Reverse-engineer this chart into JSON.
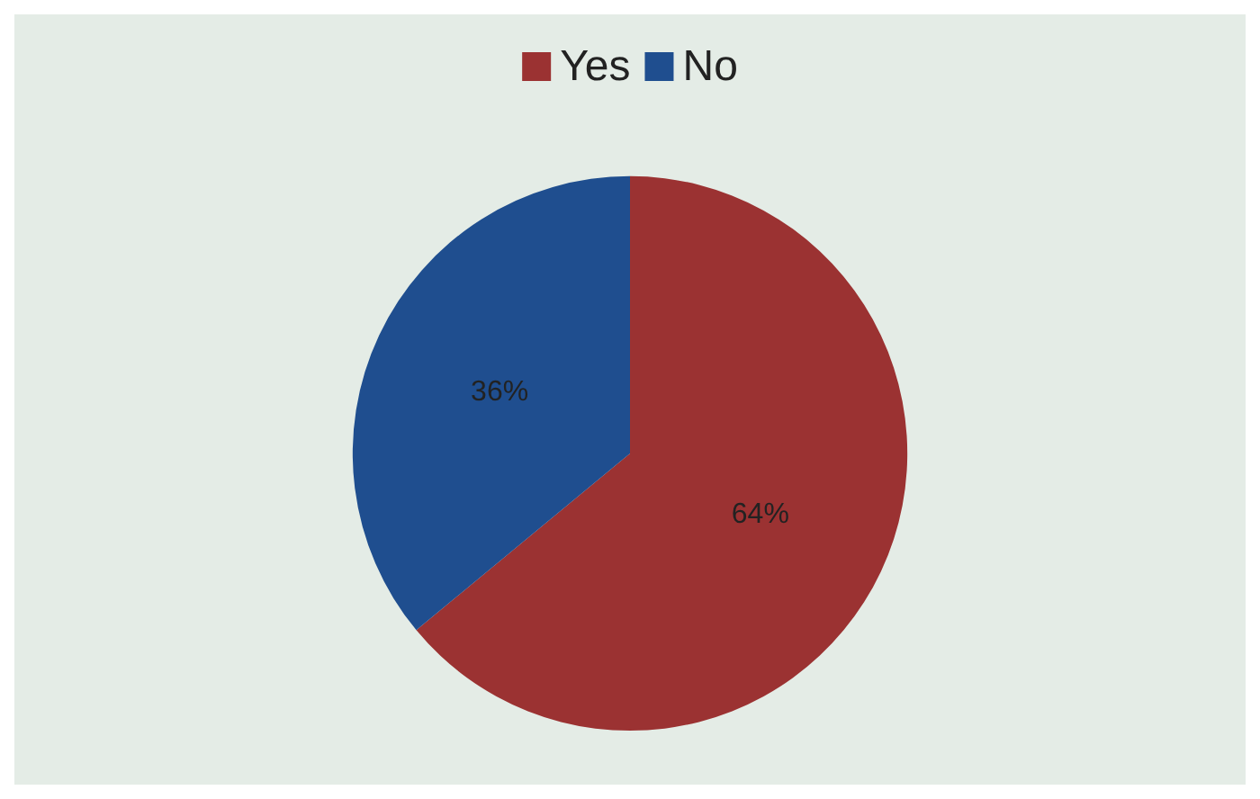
{
  "chart_data": {
    "type": "pie",
    "categories": [
      "Yes",
      "No"
    ],
    "values": [
      64,
      36
    ],
    "value_labels": [
      "64%",
      "36%"
    ],
    "colors": [
      "#9b3232",
      "#1f4e8f"
    ],
    "legend": "top"
  }
}
